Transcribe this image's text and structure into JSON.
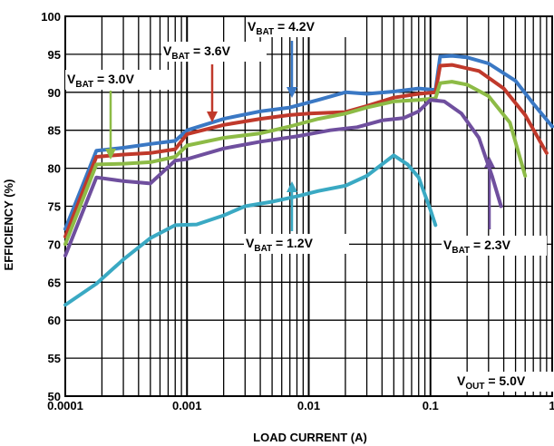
{
  "chart_data": {
    "type": "line",
    "xlabel": "LOAD CURRENT (A)",
    "ylabel": "EFFICIENCY (%)",
    "x_scale": "log",
    "xlim": [
      0.0001,
      1
    ],
    "ylim": [
      50,
      100
    ],
    "x_tick_labels": [
      "0.0001",
      "0.001",
      "0.01",
      "0.1",
      "1"
    ],
    "y_tick_labels": [
      "50",
      "55",
      "60",
      "65",
      "70",
      "75",
      "80",
      "85",
      "90",
      "95",
      "100"
    ],
    "grid": true,
    "series": [
      {
        "name": "V_BAT = 4.2V",
        "color": "#3a78c4",
        "points": [
          [
            0.0001,
            72
          ],
          [
            0.00018,
            82.3
          ],
          [
            0.0003,
            82.7
          ],
          [
            0.0005,
            83.2
          ],
          [
            0.0008,
            83.6
          ],
          [
            0.001,
            85
          ],
          [
            0.002,
            86.5
          ],
          [
            0.004,
            87.5
          ],
          [
            0.007,
            88
          ],
          [
            0.012,
            89
          ],
          [
            0.02,
            90
          ],
          [
            0.03,
            89.8
          ],
          [
            0.05,
            90.1
          ],
          [
            0.08,
            90.5
          ],
          [
            0.11,
            90.3
          ],
          [
            0.12,
            94.7
          ],
          [
            0.15,
            94.8
          ],
          [
            0.2,
            94.6
          ],
          [
            0.3,
            93.8
          ],
          [
            0.5,
            91.5
          ],
          [
            0.7,
            88.5
          ],
          [
            1.0,
            85.5
          ]
        ]
      },
      {
        "name": "V_BAT = 3.6V",
        "color": "#c0392b",
        "points": [
          [
            0.0001,
            71
          ],
          [
            0.00018,
            81.5
          ],
          [
            0.0003,
            81.8
          ],
          [
            0.0005,
            82
          ],
          [
            0.0008,
            82.5
          ],
          [
            0.001,
            84.5
          ],
          [
            0.002,
            85.7
          ],
          [
            0.004,
            86.5
          ],
          [
            0.007,
            87
          ],
          [
            0.01,
            87.2
          ],
          [
            0.02,
            87.4
          ],
          [
            0.03,
            88.2
          ],
          [
            0.05,
            89.3
          ],
          [
            0.08,
            89.8
          ],
          [
            0.11,
            90
          ],
          [
            0.12,
            93.5
          ],
          [
            0.15,
            93.6
          ],
          [
            0.25,
            92.8
          ],
          [
            0.4,
            90.5
          ],
          [
            0.6,
            87
          ],
          [
            0.9,
            82
          ]
        ]
      },
      {
        "name": "V_BAT = 3.0V",
        "color": "#8dbb46",
        "points": [
          [
            0.0001,
            70
          ],
          [
            0.00018,
            80.5
          ],
          [
            0.0003,
            80.6
          ],
          [
            0.0005,
            80.8
          ],
          [
            0.0008,
            81.5
          ],
          [
            0.001,
            83
          ],
          [
            0.002,
            84
          ],
          [
            0.004,
            84.6
          ],
          [
            0.007,
            85.5
          ],
          [
            0.012,
            86.5
          ],
          [
            0.02,
            87.2
          ],
          [
            0.03,
            88
          ],
          [
            0.05,
            88.8
          ],
          [
            0.08,
            89
          ],
          [
            0.11,
            89.2
          ],
          [
            0.12,
            91.2
          ],
          [
            0.15,
            91.4
          ],
          [
            0.2,
            91
          ],
          [
            0.3,
            89.5
          ],
          [
            0.45,
            86
          ],
          [
            0.6,
            79
          ]
        ]
      },
      {
        "name": "V_BAT = 2.3V",
        "color": "#6f4f9e",
        "points": [
          [
            0.0001,
            68.5
          ],
          [
            0.00018,
            78.8
          ],
          [
            0.0003,
            78.3
          ],
          [
            0.0005,
            78
          ],
          [
            0.0008,
            81
          ],
          [
            0.001,
            81.2
          ],
          [
            0.002,
            82.6
          ],
          [
            0.004,
            83.5
          ],
          [
            0.008,
            84.2
          ],
          [
            0.015,
            85
          ],
          [
            0.025,
            85.4
          ],
          [
            0.04,
            86.3
          ],
          [
            0.06,
            86.6
          ],
          [
            0.08,
            87.5
          ],
          [
            0.1,
            89
          ],
          [
            0.13,
            88.8
          ],
          [
            0.18,
            87.2
          ],
          [
            0.25,
            84
          ],
          [
            0.32,
            79
          ],
          [
            0.38,
            75
          ]
        ]
      },
      {
        "name": "V_BAT = 1.2V",
        "color": "#3aa9c3",
        "points": [
          [
            0.0001,
            62
          ],
          [
            0.00018,
            64.8
          ],
          [
            0.0003,
            68
          ],
          [
            0.0005,
            70.8
          ],
          [
            0.0008,
            72.5
          ],
          [
            0.0012,
            72.6
          ],
          [
            0.002,
            73.8
          ],
          [
            0.003,
            75
          ],
          [
            0.005,
            75.6
          ],
          [
            0.008,
            76.3
          ],
          [
            0.012,
            77
          ],
          [
            0.02,
            77.7
          ],
          [
            0.03,
            79
          ],
          [
            0.05,
            81.7
          ],
          [
            0.065,
            80.5
          ],
          [
            0.08,
            78.8
          ],
          [
            0.1,
            74.5
          ],
          [
            0.11,
            72.5
          ]
        ]
      }
    ],
    "annotations": [
      {
        "main": "V",
        "sub": "BAT",
        "tail": " = 4.2V"
      },
      {
        "main": "V",
        "sub": "BAT",
        "tail": " = 3.6V"
      },
      {
        "main": "V",
        "sub": "BAT",
        "tail": " = 3.0V"
      },
      {
        "main": "V",
        "sub": "BAT",
        "tail": " = 2.3V"
      },
      {
        "main": "V",
        "sub": "BAT",
        "tail": " = 1.2V"
      },
      {
        "main": "V",
        "sub": "OUT",
        "tail": " = 5.0V"
      }
    ]
  }
}
